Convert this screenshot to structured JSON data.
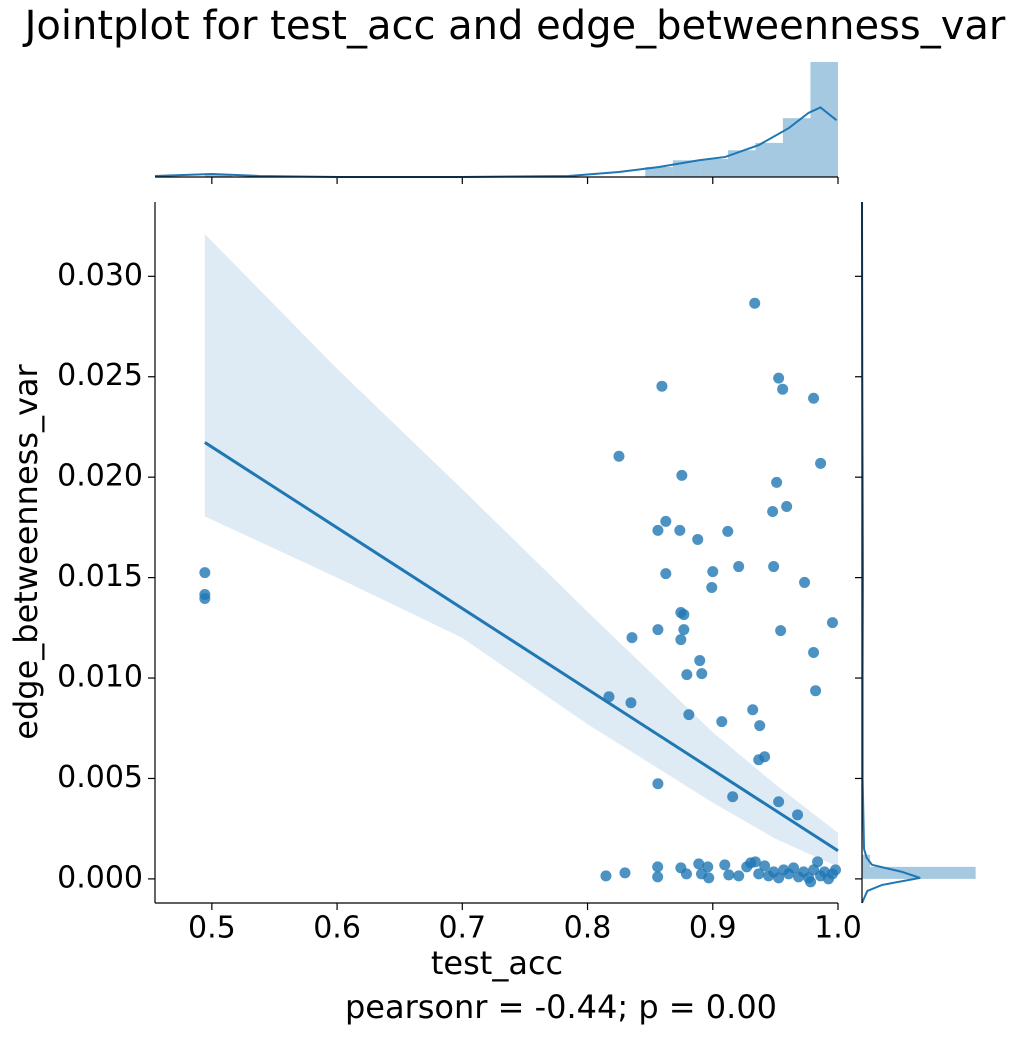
{
  "chart_data": {
    "type": "scatter",
    "title": "Jointplot for test_acc and edge_betweenness_var",
    "x_label": "test_acc",
    "y_label": "edge_betweenness_var",
    "annotation": "pearsonr = -0.44; p = 0.00",
    "color": "#1f77b4",
    "xlim": [
      0.4546,
      1.0
    ],
    "ylim": [
      -0.0012,
      0.0337
    ],
    "xticks": [
      0.5,
      0.6,
      0.7,
      0.8,
      0.9,
      {
        "value": 1,
        "label": "1.0"
      }
    ],
    "yticks": [
      {
        "value": 0,
        "label": "0.000"
      },
      {
        "value": 0.005,
        "label": "0.005"
      },
      {
        "value": 0.01,
        "label": "0.010"
      },
      {
        "value": 0.015,
        "label": "0.015"
      },
      {
        "value": 0.02,
        "label": "0.020"
      },
      {
        "value": 0.025,
        "label": "0.025"
      },
      {
        "value": 0.03,
        "label": "0.030"
      }
    ],
    "x": [
      0.4944,
      0.4944,
      0.4944,
      0.9335,
      0.8594,
      0.9526,
      0.9558,
      0.9805,
      0.8251,
      0.8753,
      0.9861,
      0.951,
      0.9478,
      0.959,
      0.8625,
      0.8562,
      0.8737,
      0.912,
      0.888,
      0.9207,
      0.9486,
      0.9,
      0.8625,
      0.9733,
      0.8992,
      0.8745,
      0.8769,
      0.9956,
      0.8355,
      0.8562,
      0.8769,
      0.9542,
      0.8745,
      0.9805,
      0.8896,
      0.8793,
      0.8912,
      0.9821,
      0.8171,
      0.8347,
      0.9319,
      0.8809,
      0.9072,
      0.9375,
      0.9414,
      0.9367,
      0.8562,
      0.9159,
      0.9526,
      0.9677,
      0.8147,
      0.8299,
      0.856,
      0.856,
      0.8745,
      0.879,
      0.8888,
      0.891,
      0.896,
      0.8968,
      0.9096,
      0.9128,
      0.9207,
      0.9271,
      0.9303,
      0.934,
      0.9367,
      0.9414,
      0.9446,
      0.9486,
      0.9526,
      0.9566,
      0.9606,
      0.9645,
      0.9685,
      0.9725,
      0.9765,
      0.9805,
      0.9837,
      0.9861,
      0.9892,
      0.9924,
      0.9956,
      0.998,
      0.9781
    ],
    "values": [
      0.01525,
      0.01416,
      0.01396,
      0.02866,
      0.02453,
      0.02493,
      0.02438,
      0.02393,
      0.02104,
      0.02009,
      0.02069,
      0.01974,
      0.01829,
      0.01854,
      0.0178,
      0.01735,
      0.01735,
      0.0173,
      0.0169,
      0.01555,
      0.01555,
      0.0153,
      0.0152,
      0.01476,
      0.01451,
      0.01326,
      0.01316,
      0.01276,
      0.01201,
      0.01241,
      0.01241,
      0.01236,
      0.01191,
      0.01127,
      0.01087,
      0.01017,
      0.01022,
      0.00937,
      0.00907,
      0.00877,
      0.00842,
      0.00818,
      0.00783,
      0.00763,
      0.00608,
      0.00593,
      0.00474,
      0.00409,
      0.00384,
      0.00319,
      0.00015,
      0.0003,
      0.0006,
      0.0001,
      0.00055,
      0.00025,
      0.00075,
      0.00025,
      0.0006,
      5e-05,
      0.0007,
      0.0002,
      0.00015,
      0.0006,
      0.0008,
      0.00085,
      0.00025,
      0.00065,
      0.00015,
      0.00035,
      5e-05,
      0.00045,
      0.00025,
      0.00055,
      0.0001,
      0.00035,
      5e-05,
      0.00045,
      0.00085,
      0.00015,
      0.00035,
      0.0,
      0.00025,
      0.00045,
      -0.00015
    ],
    "regression": {
      "x": [
        0.4944,
        1.0
      ],
      "y": [
        0.02173,
        0.0014
      ]
    },
    "ci_band": {
      "x": [
        0.4944,
        0.6,
        0.7,
        0.8,
        0.9,
        0.95,
        1.0
      ],
      "upper": [
        0.0321,
        0.0254,
        0.0194,
        0.0133,
        0.0073,
        0.0047,
        0.0023
      ],
      "lower": [
        0.01805,
        0.015,
        0.012,
        0.0077,
        0.0038,
        0.002,
        0.0006
      ]
    },
    "marginal_x": {
      "bins": [
        0.4944,
        0.5164,
        0.5384,
        0.5603,
        0.5823,
        0.6043,
        0.6263,
        0.6483,
        0.6703,
        0.6922,
        0.7142,
        0.7362,
        0.7582,
        0.7802,
        0.8022,
        0.8241,
        0.8461,
        0.8681,
        0.8901,
        0.9121,
        0.9341,
        0.956,
        0.978,
        1.0
      ],
      "counts": [
        3,
        0,
        0,
        0,
        0,
        0,
        0,
        0,
        0,
        0,
        0,
        0,
        0,
        0,
        0,
        0,
        15,
        25,
        27,
        40,
        51,
        88,
        172
      ],
      "ylim": [
        0,
        172
      ],
      "kde_x": [
        0.4546,
        0.5,
        0.538,
        0.602,
        0.698,
        0.785,
        0.825,
        0.857,
        0.889,
        0.91,
        0.937,
        0.9606,
        0.9765,
        0.986,
        0.9988
      ],
      "kde_y": [
        1.5,
        4.5,
        1.5,
        0,
        0,
        1.5,
        7.5,
        15,
        25,
        30,
        48,
        73,
        96,
        104,
        85
      ]
    },
    "marginal_y": {
      "bins": [
        0,
        0.0006,
        0.0012
      ],
      "counts": [
        170,
        12
      ],
      "xlim": [
        0,
        172
      ],
      "kde_y": [
        -0.0012,
        -0.0006,
        -0.0003,
        5e-05,
        0.00035,
        0.0007,
        0.00105,
        0.0015,
        0.005,
        0.01,
        0.015,
        0.02,
        0.025,
        0.0337
      ],
      "kde_x": [
        0,
        8,
        30,
        87,
        60,
        15,
        7,
        3,
        1,
        1,
        1.5,
        1,
        0.5,
        0
      ]
    }
  }
}
